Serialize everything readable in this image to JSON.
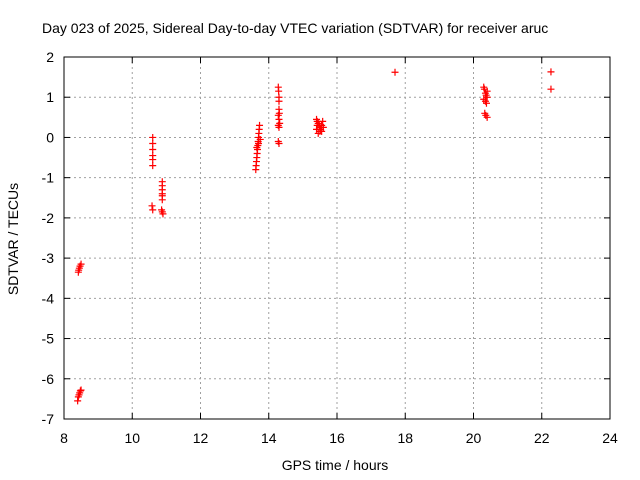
{
  "chart_data": {
    "type": "scatter",
    "title": "Day 023 of 2025, Sidereal Day-to-day VTEC variation (SDTVAR) for receiver aruc",
    "xlabel": "GPS time / hours",
    "ylabel": "SDTVAR / TECUs",
    "xlim": [
      8,
      24
    ],
    "ylim": [
      -7,
      2
    ],
    "xticks": [
      8,
      10,
      12,
      14,
      16,
      18,
      20,
      22,
      24
    ],
    "yticks": [
      -7,
      -6,
      -5,
      -4,
      -3,
      -2,
      -1,
      0,
      1,
      2
    ],
    "grid": true,
    "marker": "+",
    "color": "#ff0000",
    "series": [
      {
        "name": "SDTVAR",
        "points": [
          [
            8.42,
            -3.35
          ],
          [
            8.43,
            -3.3
          ],
          [
            8.45,
            -3.25
          ],
          [
            8.47,
            -3.2
          ],
          [
            8.5,
            -3.15
          ],
          [
            8.4,
            -6.55
          ],
          [
            8.42,
            -6.45
          ],
          [
            8.44,
            -6.4
          ],
          [
            8.46,
            -6.35
          ],
          [
            8.48,
            -6.3
          ],
          [
            8.5,
            -6.28
          ],
          [
            10.6,
            0.0
          ],
          [
            10.6,
            -0.15
          ],
          [
            10.6,
            -0.3
          ],
          [
            10.6,
            -0.45
          ],
          [
            10.6,
            -0.55
          ],
          [
            10.6,
            -0.7
          ],
          [
            10.58,
            -1.7
          ],
          [
            10.6,
            -1.8
          ],
          [
            10.88,
            -1.1
          ],
          [
            10.88,
            -1.2
          ],
          [
            10.88,
            -1.3
          ],
          [
            10.88,
            -1.4
          ],
          [
            10.88,
            -1.45
          ],
          [
            10.88,
            -1.55
          ],
          [
            10.86,
            -1.8
          ],
          [
            10.88,
            -1.85
          ],
          [
            10.9,
            -1.9
          ],
          [
            13.62,
            -0.8
          ],
          [
            13.63,
            -0.7
          ],
          [
            13.64,
            -0.6
          ],
          [
            13.65,
            -0.5
          ],
          [
            13.66,
            -0.4
          ],
          [
            13.67,
            -0.3
          ],
          [
            13.68,
            -0.2
          ],
          [
            13.69,
            -0.1
          ],
          [
            13.7,
            0.0
          ],
          [
            13.71,
            0.1
          ],
          [
            13.72,
            0.2
          ],
          [
            13.73,
            0.3
          ],
          [
            13.65,
            -0.25
          ],
          [
            13.7,
            -0.15
          ],
          [
            13.75,
            -0.05
          ],
          [
            14.28,
            1.25
          ],
          [
            14.29,
            1.15
          ],
          [
            14.3,
            1.0
          ],
          [
            14.3,
            0.9
          ],
          [
            14.3,
            0.7
          ],
          [
            14.31,
            0.6
          ],
          [
            14.28,
            0.55
          ],
          [
            14.3,
            0.45
          ],
          [
            14.32,
            0.35
          ],
          [
            14.28,
            0.3
          ],
          [
            14.3,
            0.25
          ],
          [
            14.28,
            -0.1
          ],
          [
            14.3,
            -0.15
          ],
          [
            15.4,
            0.45
          ],
          [
            15.42,
            0.4
          ],
          [
            15.45,
            0.35
          ],
          [
            15.48,
            0.3
          ],
          [
            15.5,
            0.25
          ],
          [
            15.52,
            0.2
          ],
          [
            15.55,
            0.15
          ],
          [
            15.4,
            0.2
          ],
          [
            15.45,
            0.1
          ],
          [
            15.5,
            0.15
          ],
          [
            15.55,
            0.3
          ],
          [
            15.58,
            0.4
          ],
          [
            15.6,
            0.25
          ],
          [
            15.42,
            0.3
          ],
          [
            17.7,
            1.62
          ],
          [
            20.3,
            1.25
          ],
          [
            20.32,
            1.2
          ],
          [
            20.35,
            1.1
          ],
          [
            20.37,
            1.05
          ],
          [
            20.4,
            1.0
          ],
          [
            20.3,
            0.95
          ],
          [
            20.35,
            0.9
          ],
          [
            20.38,
            0.85
          ],
          [
            20.4,
            1.15
          ],
          [
            20.33,
            0.6
          ],
          [
            20.36,
            0.55
          ],
          [
            20.4,
            0.5
          ],
          [
            22.27,
            1.63
          ],
          [
            22.27,
            1.2
          ]
        ]
      }
    ]
  }
}
